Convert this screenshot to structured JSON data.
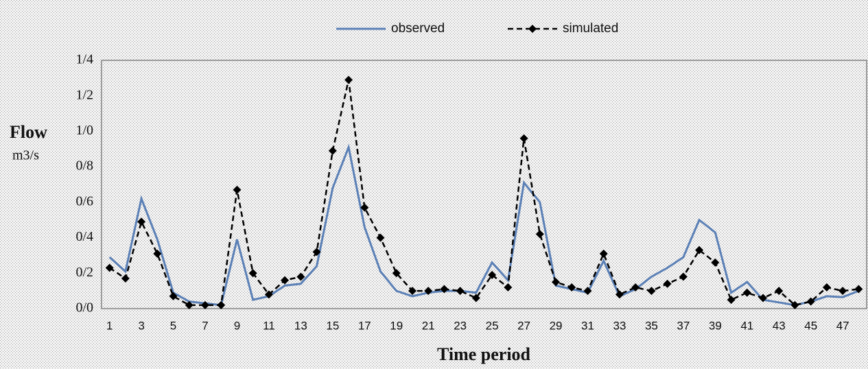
{
  "chart_data": {
    "type": "line",
    "x_label": "Time period",
    "y_label": "Flow",
    "y_unit": "m3/s",
    "categories": [
      1,
      null,
      3,
      null,
      5,
      null,
      7,
      null,
      9,
      null,
      11,
      null,
      13,
      null,
      15,
      null,
      17,
      null,
      19,
      null,
      21,
      null,
      23,
      null,
      25,
      null,
      27,
      null,
      29,
      null,
      31,
      null,
      33,
      null,
      35,
      null,
      37,
      null,
      39,
      null,
      41,
      null,
      43,
      null,
      45,
      null,
      47,
      null
    ],
    "ylim": [
      0,
      1.4
    ],
    "yticks": [
      {
        "value": 0,
        "label": "0/0"
      },
      {
        "value": 0.2,
        "label": "0/2"
      },
      {
        "value": 0.4,
        "label": "0/4"
      },
      {
        "value": 0.6,
        "label": "0/6"
      },
      {
        "value": 0.8,
        "label": "0/8"
      },
      {
        "value": 1.0,
        "label": "1/0"
      },
      {
        "value": 1.2,
        "label": "1/2"
      },
      {
        "value": 1.4,
        "label": "1/4"
      }
    ],
    "grid": false,
    "legend": "top",
    "series": [
      {
        "name": "observed",
        "color": "#5b80b6",
        "line_style": "solid",
        "marker": "none",
        "values": [
          0.29,
          0.21,
          0.62,
          0.39,
          0.09,
          0.04,
          0.03,
          0.02,
          0.39,
          0.05,
          0.07,
          0.13,
          0.14,
          0.24,
          0.68,
          0.91,
          0.46,
          0.21,
          0.1,
          0.07,
          0.09,
          0.1,
          0.1,
          0.09,
          0.26,
          0.16,
          0.71,
          0.6,
          0.13,
          0.11,
          0.09,
          0.27,
          0.07,
          0.11,
          0.18,
          0.23,
          0.29,
          0.5,
          0.43,
          0.09,
          0.15,
          0.05,
          0.035,
          0.02,
          0.04,
          0.07,
          0.065,
          0.1
        ]
      },
      {
        "name": "simulated",
        "color": "#000000",
        "line_style": "dashed",
        "marker": "diamond",
        "values": [
          0.23,
          0.17,
          0.49,
          0.31,
          0.07,
          0.02,
          0.02,
          0.02,
          0.67,
          0.2,
          0.08,
          0.16,
          0.18,
          0.32,
          0.89,
          1.29,
          0.57,
          0.4,
          0.2,
          0.1,
          0.1,
          0.11,
          0.1,
          0.06,
          0.19,
          0.12,
          0.96,
          0.42,
          0.15,
          0.12,
          0.1,
          0.31,
          0.08,
          0.12,
          0.1,
          0.14,
          0.18,
          0.33,
          0.26,
          0.05,
          0.09,
          0.06,
          0.1,
          0.02,
          0.04,
          0.12,
          0.1,
          0.11
        ]
      }
    ]
  }
}
